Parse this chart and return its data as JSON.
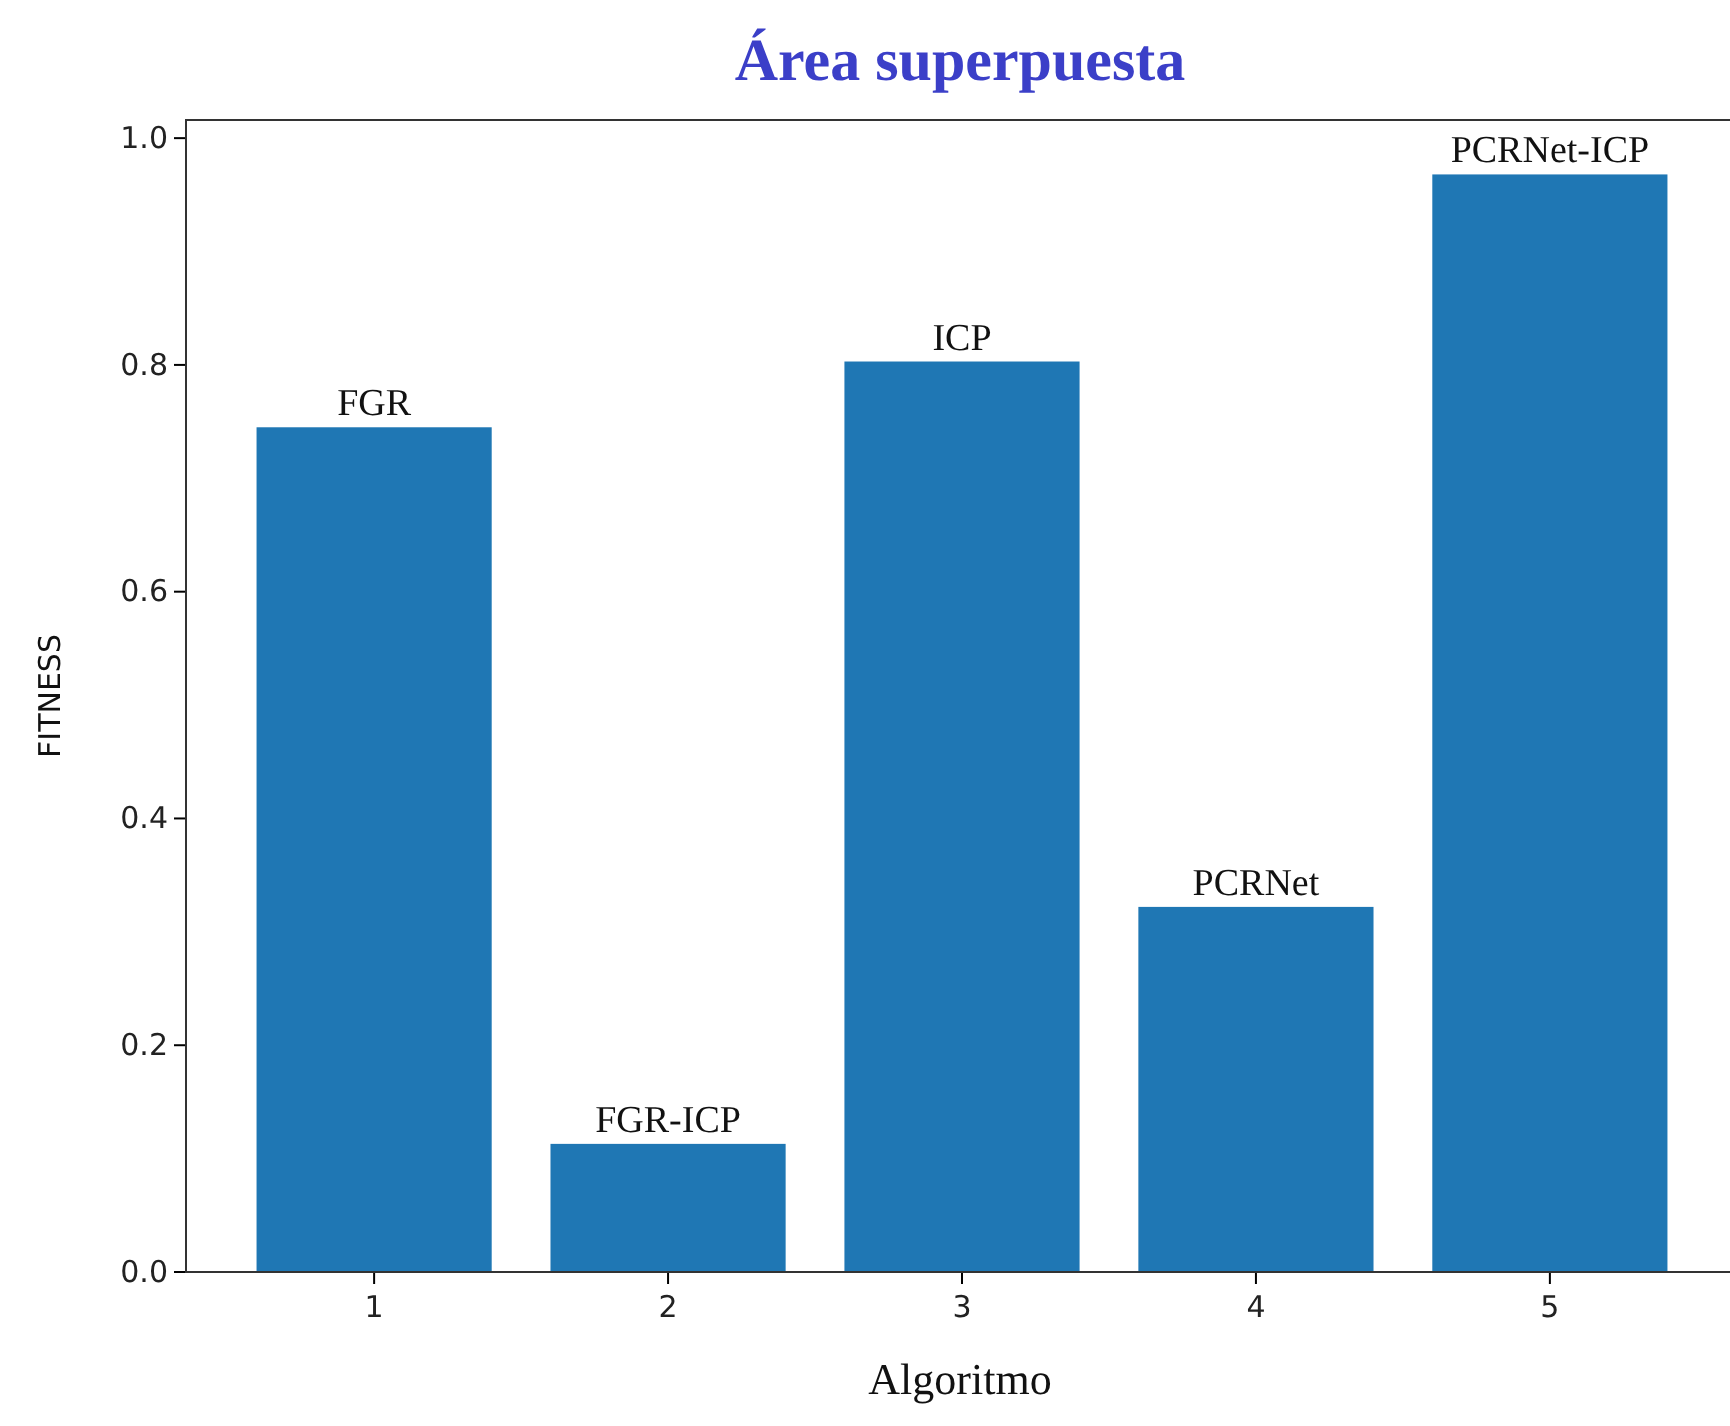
{
  "chart_data": {
    "type": "bar",
    "title": "Área superpuesta",
    "xlabel": "Algoritmo",
    "ylabel": "FITNESS",
    "categories": [
      "1",
      "2",
      "3",
      "4",
      "5"
    ],
    "values": [
      0.745,
      0.113,
      0.803,
      0.322,
      0.968
    ],
    "color": "#1f77b4",
    "ylim": [
      0,
      1.016
    ],
    "yticks": [
      {
        "value": 0,
        "label": "0.0"
      },
      {
        "value": 0.2,
        "label": "0.2"
      },
      {
        "value": 0.4,
        "label": "0.4"
      },
      {
        "value": 0.6,
        "label": "0.6"
      },
      {
        "value": 0.8,
        "label": "0.8"
      },
      {
        "value": 1,
        "label": "1.0"
      }
    ],
    "grid": false,
    "annotations": [
      {
        "text": "FGR",
        "x": "1",
        "y": 0.745
      },
      {
        "text": "FGR-ICP",
        "x": "2",
        "y": 0.113
      },
      {
        "text": "ICP",
        "x": "3",
        "y": 0.803
      },
      {
        "text": "PCRNet",
        "x": "4",
        "y": 0.322
      },
      {
        "text": "PCRNet-ICP",
        "x": "5",
        "y": 0.968
      }
    ]
  }
}
